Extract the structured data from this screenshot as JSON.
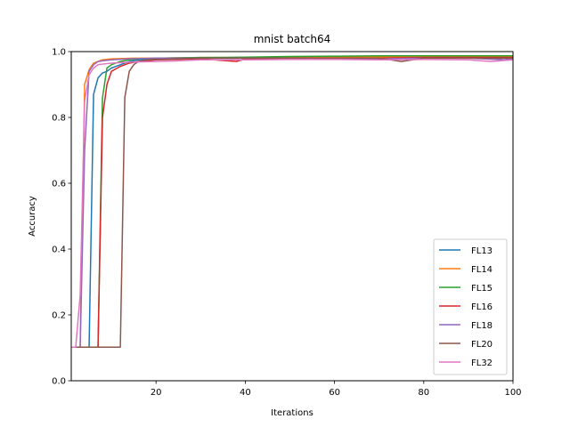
{
  "chart_data": {
    "type": "line",
    "title": "mnist batch64",
    "xlabel": "Iterations",
    "ylabel": "Accuracy",
    "xlim": [
      1,
      100
    ],
    "ylim": [
      0.0,
      1.0
    ],
    "xticks": [
      20,
      40,
      60,
      80,
      100
    ],
    "yticks": [
      0.0,
      0.2,
      0.4,
      0.6,
      0.8,
      1.0
    ],
    "xtick_labels": [
      "20",
      "40",
      "60",
      "80",
      "100"
    ],
    "ytick_labels": [
      "0.0",
      "0.2",
      "0.4",
      "0.6",
      "0.8",
      "1.0"
    ],
    "grid": false,
    "legend_position": "lower-right",
    "series": [
      {
        "name": "FL13",
        "color": "#1f77b4",
        "points": [
          [
            1,
            0.102
          ],
          [
            2,
            0.102
          ],
          [
            3,
            0.102
          ],
          [
            4,
            0.102
          ],
          [
            5,
            0.102
          ],
          [
            6,
            0.87
          ],
          [
            7,
            0.92
          ],
          [
            8,
            0.935
          ],
          [
            9,
            0.94
          ],
          [
            10,
            0.95
          ],
          [
            12,
            0.96
          ],
          [
            14,
            0.97
          ],
          [
            16,
            0.975
          ],
          [
            20,
            0.978
          ],
          [
            30,
            0.98
          ],
          [
            40,
            0.98
          ],
          [
            50,
            0.982
          ],
          [
            60,
            0.982
          ],
          [
            70,
            0.985
          ],
          [
            80,
            0.983
          ],
          [
            90,
            0.984
          ],
          [
            95,
            0.98
          ],
          [
            98,
            0.975
          ],
          [
            100,
            0.98
          ]
        ]
      },
      {
        "name": "FL14",
        "color": "#ff7f0e",
        "points": [
          [
            1,
            0.102
          ],
          [
            2,
            0.102
          ],
          [
            3,
            0.102
          ],
          [
            4,
            0.9
          ],
          [
            5,
            0.945
          ],
          [
            6,
            0.965
          ],
          [
            7,
            0.97
          ],
          [
            8,
            0.975
          ],
          [
            10,
            0.978
          ],
          [
            15,
            0.98
          ],
          [
            20,
            0.98
          ],
          [
            30,
            0.982
          ],
          [
            40,
            0.982
          ],
          [
            50,
            0.983
          ],
          [
            60,
            0.983
          ],
          [
            70,
            0.984
          ],
          [
            80,
            0.984
          ],
          [
            90,
            0.984
          ],
          [
            100,
            0.984
          ]
        ]
      },
      {
        "name": "FL15",
        "color": "#2ca02c",
        "points": [
          [
            1,
            0.102
          ],
          [
            2,
            0.102
          ],
          [
            3,
            0.102
          ],
          [
            4,
            0.102
          ],
          [
            5,
            0.102
          ],
          [
            6,
            0.102
          ],
          [
            7,
            0.102
          ],
          [
            8,
            0.86
          ],
          [
            9,
            0.95
          ],
          [
            10,
            0.96
          ],
          [
            12,
            0.97
          ],
          [
            14,
            0.975
          ],
          [
            16,
            0.978
          ],
          [
            20,
            0.98
          ],
          [
            30,
            0.982
          ],
          [
            40,
            0.983
          ],
          [
            50,
            0.985
          ],
          [
            60,
            0.986
          ],
          [
            70,
            0.987
          ],
          [
            80,
            0.987
          ],
          [
            90,
            0.987
          ],
          [
            100,
            0.987
          ]
        ]
      },
      {
        "name": "FL16",
        "color": "#d62728",
        "points": [
          [
            1,
            0.102
          ],
          [
            2,
            0.102
          ],
          [
            3,
            0.102
          ],
          [
            4,
            0.102
          ],
          [
            5,
            0.102
          ],
          [
            6,
            0.102
          ],
          [
            7,
            0.102
          ],
          [
            8,
            0.8
          ],
          [
            9,
            0.9
          ],
          [
            10,
            0.94
          ],
          [
            12,
            0.955
          ],
          [
            14,
            0.965
          ],
          [
            16,
            0.97
          ],
          [
            20,
            0.975
          ],
          [
            30,
            0.978
          ],
          [
            38,
            0.97
          ],
          [
            40,
            0.978
          ],
          [
            50,
            0.98
          ],
          [
            60,
            0.98
          ],
          [
            70,
            0.98
          ],
          [
            80,
            0.982
          ],
          [
            90,
            0.982
          ],
          [
            100,
            0.982
          ]
        ]
      },
      {
        "name": "FL18",
        "color": "#9467bd",
        "points": [
          [
            1,
            0.102
          ],
          [
            2,
            0.102
          ],
          [
            3,
            0.102
          ],
          [
            4,
            0.7
          ],
          [
            5,
            0.94
          ],
          [
            6,
            0.96
          ],
          [
            7,
            0.97
          ],
          [
            8,
            0.972
          ],
          [
            10,
            0.975
          ],
          [
            14,
            0.978
          ],
          [
            20,
            0.98
          ],
          [
            30,
            0.98
          ],
          [
            40,
            0.98
          ],
          [
            50,
            0.98
          ],
          [
            60,
            0.98
          ],
          [
            70,
            0.978
          ],
          [
            80,
            0.98
          ],
          [
            90,
            0.98
          ],
          [
            98,
            0.975
          ],
          [
            100,
            0.978
          ]
        ]
      },
      {
        "name": "FL20",
        "color": "#8c564b",
        "points": [
          [
            1,
            0.102
          ],
          [
            2,
            0.102
          ],
          [
            4,
            0.102
          ],
          [
            6,
            0.102
          ],
          [
            8,
            0.102
          ],
          [
            10,
            0.102
          ],
          [
            12,
            0.102
          ],
          [
            13,
            0.86
          ],
          [
            14,
            0.94
          ],
          [
            15,
            0.96
          ],
          [
            16,
            0.97
          ],
          [
            18,
            0.975
          ],
          [
            20,
            0.976
          ],
          [
            25,
            0.978
          ],
          [
            30,
            0.98
          ],
          [
            40,
            0.98
          ],
          [
            50,
            0.98
          ],
          [
            60,
            0.98
          ],
          [
            70,
            0.98
          ],
          [
            75,
            0.97
          ],
          [
            80,
            0.98
          ],
          [
            90,
            0.98
          ],
          [
            100,
            0.98
          ]
        ]
      },
      {
        "name": "FL32",
        "color": "#e377c2",
        "points": [
          [
            1,
            0.102
          ],
          [
            2,
            0.102
          ],
          [
            3,
            0.26
          ],
          [
            4,
            0.85
          ],
          [
            5,
            0.93
          ],
          [
            6,
            0.95
          ],
          [
            7,
            0.96
          ],
          [
            8,
            0.962
          ],
          [
            10,
            0.965
          ],
          [
            14,
            0.968
          ],
          [
            20,
            0.97
          ],
          [
            25,
            0.972
          ],
          [
            30,
            0.975
          ],
          [
            40,
            0.975
          ],
          [
            50,
            0.976
          ],
          [
            60,
            0.976
          ],
          [
            70,
            0.975
          ],
          [
            80,
            0.976
          ],
          [
            90,
            0.975
          ],
          [
            95,
            0.97
          ],
          [
            100,
            0.975
          ]
        ]
      }
    ]
  }
}
